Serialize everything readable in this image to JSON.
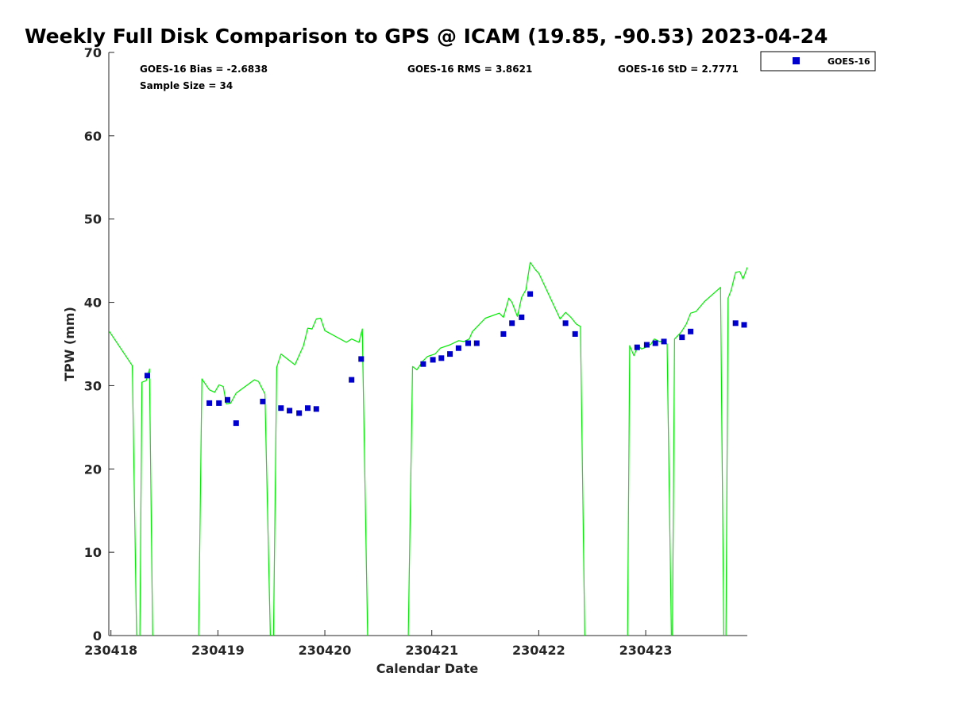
{
  "chart_data": {
    "type": "scatter",
    "title": "Weekly Full Disk Comparison to GPS @ ICAM (19.85, -90.53) 2023-04-24",
    "xlabel": "Calendar Date",
    "ylabel": "TPW (mm)",
    "xlim": [
      -0.02,
      5.95
    ],
    "ylim": [
      0,
      70
    ],
    "x_tick_values": [
      0,
      1,
      2,
      3,
      4,
      5
    ],
    "x_tick_labels": [
      "230418",
      "230419",
      "230420",
      "230421",
      "230422",
      "230423"
    ],
    "y_ticks": [
      0,
      10,
      20,
      30,
      40,
      50,
      60,
      70
    ],
    "grid": false,
    "legend_position": "top-right",
    "stats": {
      "bias": "GOES-16 Bias = -2.6838",
      "rms": "GOES-16 RMS = 3.8621",
      "std": "GOES-16 StD = 2.7771",
      "sample": "Sample Size = 34"
    },
    "series": [
      {
        "name": "GOES-16",
        "kind": "scatter",
        "color": "#0000cc",
        "marker": "square",
        "points": [
          [
            0.34,
            31.2
          ],
          [
            0.92,
            27.9
          ],
          [
            1.01,
            27.9
          ],
          [
            1.09,
            28.3
          ],
          [
            1.17,
            25.5
          ],
          [
            1.42,
            28.1
          ],
          [
            1.59,
            27.3
          ],
          [
            1.67,
            27.0
          ],
          [
            1.76,
            26.7
          ],
          [
            1.84,
            27.3
          ],
          [
            1.92,
            27.2
          ],
          [
            2.25,
            30.7
          ],
          [
            2.34,
            33.2
          ],
          [
            2.92,
            32.6
          ],
          [
            3.01,
            33.1
          ],
          [
            3.09,
            33.3
          ],
          [
            3.17,
            33.8
          ],
          [
            3.25,
            34.5
          ],
          [
            3.34,
            35.1
          ],
          [
            3.42,
            35.1
          ],
          [
            3.67,
            36.2
          ],
          [
            3.75,
            37.5
          ],
          [
            3.84,
            38.2
          ],
          [
            3.92,
            41.0
          ],
          [
            4.25,
            37.5
          ],
          [
            4.34,
            36.2
          ],
          [
            4.92,
            34.6
          ],
          [
            5.01,
            34.9
          ],
          [
            5.09,
            35.1
          ],
          [
            5.17,
            35.3
          ],
          [
            5.34,
            35.8
          ],
          [
            5.42,
            36.5
          ],
          [
            5.84,
            37.5
          ],
          [
            5.92,
            37.3
          ]
        ]
      },
      {
        "kind": "line",
        "color": "#00ee00",
        "segments": [
          [
            [
              -0.02,
              36.6
            ],
            [
              0.2,
              32.4
            ],
            [
              0.24,
              0
            ]
          ],
          [
            [
              0.27,
              0
            ],
            [
              0.29,
              30.4
            ],
            [
              0.33,
              30.6
            ],
            [
              0.36,
              32.0
            ],
            [
              0.39,
              0
            ]
          ],
          [
            [
              0.82,
              0
            ],
            [
              0.85,
              30.8
            ],
            [
              0.92,
              29.5
            ],
            [
              0.97,
              29.2
            ],
            [
              1.01,
              30.1
            ],
            [
              1.05,
              29.9
            ],
            [
              1.08,
              27.8
            ],
            [
              1.12,
              27.9
            ],
            [
              1.17,
              29.1
            ],
            [
              1.34,
              30.7
            ],
            [
              1.38,
              30.5
            ],
            [
              1.44,
              29.0
            ],
            [
              1.49,
              0
            ]
          ],
          [
            [
              1.52,
              0
            ],
            [
              1.55,
              32.2
            ],
            [
              1.59,
              33.8
            ],
            [
              1.67,
              33.0
            ],
            [
              1.72,
              32.5
            ],
            [
              1.8,
              34.8
            ],
            [
              1.84,
              36.9
            ],
            [
              1.88,
              36.8
            ],
            [
              1.92,
              38.0
            ],
            [
              1.96,
              38.1
            ],
            [
              2.0,
              36.6
            ],
            [
              2.2,
              35.2
            ],
            [
              2.25,
              35.6
            ],
            [
              2.32,
              35.2
            ],
            [
              2.35,
              36.8
            ],
            [
              2.4,
              0
            ]
          ],
          [
            [
              2.78,
              0
            ],
            [
              2.82,
              32.3
            ],
            [
              2.86,
              31.9
            ],
            [
              2.92,
              33.0
            ],
            [
              2.96,
              33.5
            ],
            [
              3.03,
              33.8
            ],
            [
              3.08,
              34.5
            ],
            [
              3.17,
              34.9
            ],
            [
              3.25,
              35.4
            ],
            [
              3.3,
              35.3
            ],
            [
              3.35,
              35.6
            ],
            [
              3.38,
              36.5
            ],
            [
              3.44,
              37.3
            ],
            [
              3.5,
              38.1
            ],
            [
              3.63,
              38.7
            ],
            [
              3.67,
              38.2
            ],
            [
              3.72,
              40.5
            ],
            [
              3.75,
              40.0
            ],
            [
              3.8,
              38.3
            ],
            [
              3.84,
              40.6
            ],
            [
              3.88,
              41.5
            ],
            [
              3.92,
              44.8
            ],
            [
              3.97,
              43.9
            ],
            [
              4.0,
              43.5
            ],
            [
              4.2,
              38.0
            ],
            [
              4.25,
              38.8
            ],
            [
              4.3,
              38.2
            ],
            [
              4.35,
              37.4
            ],
            [
              4.39,
              37.1
            ],
            [
              4.43,
              0
            ]
          ],
          [
            [
              4.83,
              0
            ],
            [
              4.85,
              34.8
            ],
            [
              4.89,
              33.6
            ],
            [
              4.93,
              34.8
            ],
            [
              4.96,
              34.4
            ],
            [
              5.0,
              34.6
            ],
            [
              5.05,
              35.0
            ],
            [
              5.08,
              35.6
            ],
            [
              5.13,
              35.3
            ],
            [
              5.18,
              35.3
            ],
            [
              5.2,
              35.0
            ],
            [
              5.24,
              0
            ]
          ],
          [
            [
              5.25,
              0
            ],
            [
              5.27,
              35.6
            ],
            [
              5.33,
              36.4
            ],
            [
              5.38,
              37.4
            ],
            [
              5.42,
              38.7
            ],
            [
              5.47,
              38.9
            ],
            [
              5.55,
              40.1
            ],
            [
              5.7,
              41.8
            ],
            [
              5.73,
              0
            ]
          ],
          [
            [
              5.75,
              0
            ],
            [
              5.77,
              40.5
            ],
            [
              5.8,
              41.5
            ],
            [
              5.84,
              43.6
            ],
            [
              5.88,
              43.7
            ],
            [
              5.91,
              42.8
            ],
            [
              5.95,
              44.2
            ]
          ]
        ]
      }
    ]
  }
}
